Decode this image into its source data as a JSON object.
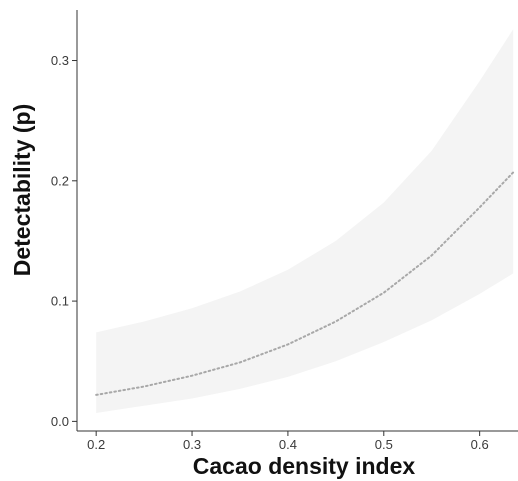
{
  "chart_data": {
    "type": "line",
    "xlabel": "Cacao density index",
    "ylabel": "Detectability (p)",
    "xlim": [
      0.18,
      0.64
    ],
    "ylim": [
      -0.008,
      0.342
    ],
    "x_ticks": [
      0.2,
      0.3,
      0.4,
      0.5,
      0.6
    ],
    "x_tick_labels": [
      "0.2",
      "0.3",
      "0.4",
      "0.5",
      "0.6"
    ],
    "y_ticks": [
      0.0,
      0.1,
      0.2,
      0.3
    ],
    "y_tick_labels": [
      "0.0",
      "0.1",
      "0.2",
      "0.3"
    ],
    "grid": false,
    "legend": "none",
    "series": [
      {
        "style": "dotted",
        "color": "#a8a8a8",
        "x": [
          0.2,
          0.25,
          0.3,
          0.35,
          0.4,
          0.45,
          0.5,
          0.55,
          0.6,
          0.635
        ],
        "y": [
          0.022,
          0.029,
          0.038,
          0.049,
          0.064,
          0.083,
          0.107,
          0.138,
          0.178,
          0.207
        ],
        "ci_color": "#f4f4f4",
        "ci_lower": [
          0.007,
          0.013,
          0.019,
          0.027,
          0.037,
          0.05,
          0.066,
          0.084,
          0.106,
          0.123
        ],
        "ci_upper": [
          0.074,
          0.083,
          0.094,
          0.108,
          0.126,
          0.15,
          0.182,
          0.225,
          0.283,
          0.326
        ]
      }
    ]
  }
}
